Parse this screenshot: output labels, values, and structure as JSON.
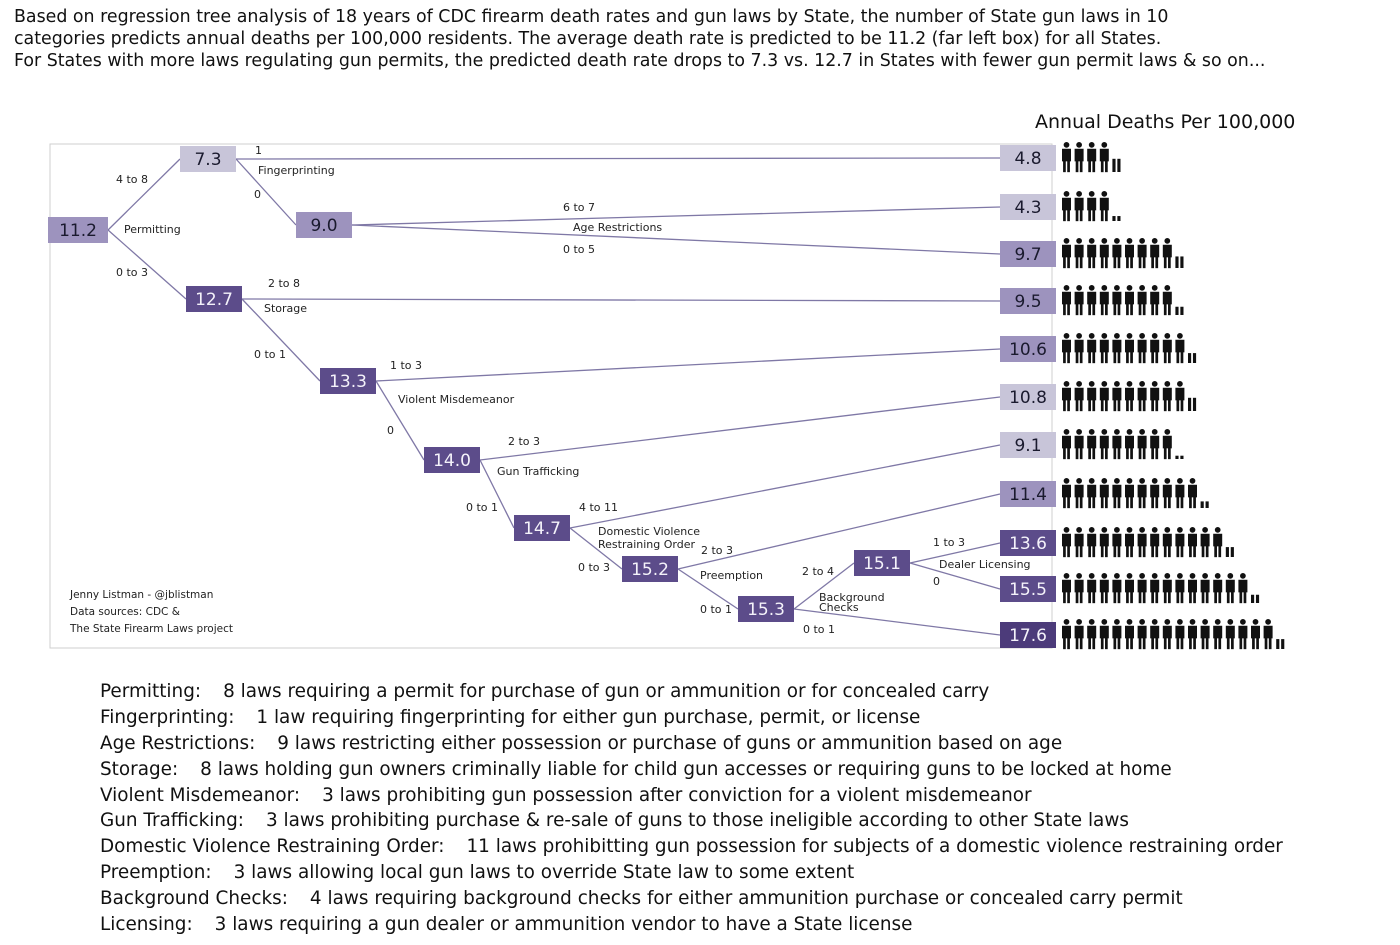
{
  "intro": {
    "line1": "Based on regression tree analysis of 18 years of CDC firearm death rates and gun laws by State, the number of State gun laws in 10",
    "line2": "categories predicts annual deaths per 100,000 residents. The average death rate is predicted to be 11.2 (far left box) for all States.",
    "line3": "For States with more laws regulating gun permits, the predicted death rate drops to 7.3 vs. 12.7 in States with fewer gun permit laws & so on..."
  },
  "deaths_title": "Annual Deaths Per 100,000",
  "colors": {
    "line": "#7f78a6",
    "node_light": "#c8c5d9",
    "node_mid": "#9d93be",
    "node_dark": "#5c4c8a",
    "node_darkest": "#4c3b7a",
    "icon": "#111111"
  },
  "credits": [
    "Jenny Listman - @jblistman",
    "Data sources: CDC &",
    "The State Firearm Laws project"
  ],
  "nodes": [
    {
      "id": "root",
      "value": "11.2",
      "shade": "mid"
    },
    {
      "id": "n73",
      "value": "7.3",
      "shade": "light"
    },
    {
      "id": "n90",
      "value": "9.0",
      "shade": "mid"
    },
    {
      "id": "n127",
      "value": "12.7",
      "shade": "dark"
    },
    {
      "id": "n133",
      "value": "13.3",
      "shade": "dark"
    },
    {
      "id": "n140",
      "value": "14.0",
      "shade": "dark"
    },
    {
      "id": "n147",
      "value": "14.7",
      "shade": "dark"
    },
    {
      "id": "n152",
      "value": "15.2",
      "shade": "dark"
    },
    {
      "id": "n153",
      "value": "15.3",
      "shade": "dark"
    },
    {
      "id": "n151",
      "value": "15.1",
      "shade": "dark"
    }
  ],
  "splits": [
    {
      "id": "s_perm",
      "label": "Permitting"
    },
    {
      "id": "s_fing",
      "label": "Fingerprinting"
    },
    {
      "id": "s_age",
      "label": "Age Restrictions"
    },
    {
      "id": "s_stor",
      "label": "Storage"
    },
    {
      "id": "s_viol",
      "label": "Violent Misdemeanor"
    },
    {
      "id": "s_traf",
      "label": "Gun Trafficking"
    },
    {
      "id": "s_dv1",
      "label": "Domestic Violence"
    },
    {
      "id": "s_dv2",
      "label": "Restraining Order"
    },
    {
      "id": "s_pre",
      "label": "Preemption"
    },
    {
      "id": "s_bg1",
      "label": "Background"
    },
    {
      "id": "s_bg2",
      "label": "Checks"
    },
    {
      "id": "s_lic",
      "label": "Dealer Licensing"
    }
  ],
  "branches": [
    {
      "id": "b1",
      "label": "4 to 8"
    },
    {
      "id": "b2",
      "label": "0 to 3"
    },
    {
      "id": "b3",
      "label": "1"
    },
    {
      "id": "b4",
      "label": "0"
    },
    {
      "id": "b5",
      "label": "6 to 7"
    },
    {
      "id": "b6",
      "label": "0 to 5"
    },
    {
      "id": "b7",
      "label": "2 to 8"
    },
    {
      "id": "b8",
      "label": "0 to 1"
    },
    {
      "id": "b9",
      "label": "1 to 3"
    },
    {
      "id": "b10",
      "label": "0"
    },
    {
      "id": "b11",
      "label": "2 to 3"
    },
    {
      "id": "b12",
      "label": "0 to 1"
    },
    {
      "id": "b13",
      "label": "4 to 11"
    },
    {
      "id": "b14",
      "label": "0 to 3"
    },
    {
      "id": "b15",
      "label": "2 to 3"
    },
    {
      "id": "b16",
      "label": "0 to 1"
    },
    {
      "id": "b17",
      "label": "2 to 4"
    },
    {
      "id": "b18",
      "label": "0 to 1"
    },
    {
      "id": "b19",
      "label": "1 to 3"
    },
    {
      "id": "b20",
      "label": "0"
    }
  ],
  "leaves": [
    {
      "value": "4.8",
      "deaths": 4.8,
      "shade": "light"
    },
    {
      "value": "4.3",
      "deaths": 4.3,
      "shade": "light"
    },
    {
      "value": "9.7",
      "deaths": 9.7,
      "shade": "mid"
    },
    {
      "value": "9.5",
      "deaths": 9.5,
      "shade": "mid"
    },
    {
      "value": "10.6",
      "deaths": 10.6,
      "shade": "mid"
    },
    {
      "value": "10.8",
      "deaths": 10.8,
      "shade": "light"
    },
    {
      "value": "9.1",
      "deaths": 9.1,
      "shade": "light"
    },
    {
      "value": "11.4",
      "deaths": 11.4,
      "shade": "mid"
    },
    {
      "value": "13.6",
      "deaths": 13.6,
      "shade": "dark"
    },
    {
      "value": "15.5",
      "deaths": 15.5,
      "shade": "dark"
    },
    {
      "value": "17.6",
      "deaths": 17.6,
      "shade": "darkest"
    }
  ],
  "legend": [
    {
      "term": "Permitting:",
      "desc": "8 laws requiring a permit for purchase of gun or ammunition or for concealed carry"
    },
    {
      "term": "Fingerprinting:",
      "desc": "1 law requiring fingerprinting for either gun purchase, permit, or license"
    },
    {
      "term": "Age Restrictions:",
      "desc": "9 laws restricting either possession or purchase of guns or ammunition based on age"
    },
    {
      "term": "Storage:",
      "desc": "8 laws holding gun owners criminally liable for child gun accesses or requiring guns to be locked at home"
    },
    {
      "term": "Violent Misdemeanor:",
      "desc": "3 laws prohibiting gun possession after conviction for a violent misdemeanor"
    },
    {
      "term": "Gun Trafficking:",
      "desc": "3 laws prohibiting purchase & re-sale of guns to those ineligible according to other State laws"
    },
    {
      "term": "Domestic Violence Restraining Order:",
      "desc": "11 laws prohibitting gun possession for subjects of a domestic violence restraining order"
    },
    {
      "term": "Preemption:",
      "desc": "3 laws allowing local gun laws to override State law to some extent"
    },
    {
      "term": "Background Checks:",
      "desc": "4 laws requiring background checks for either ammunition purchase or concealed carry permit"
    },
    {
      "term": "Licensing:",
      "desc": "3 laws requiring a gun dealer or ammunition vendor to have a State license"
    }
  ]
}
